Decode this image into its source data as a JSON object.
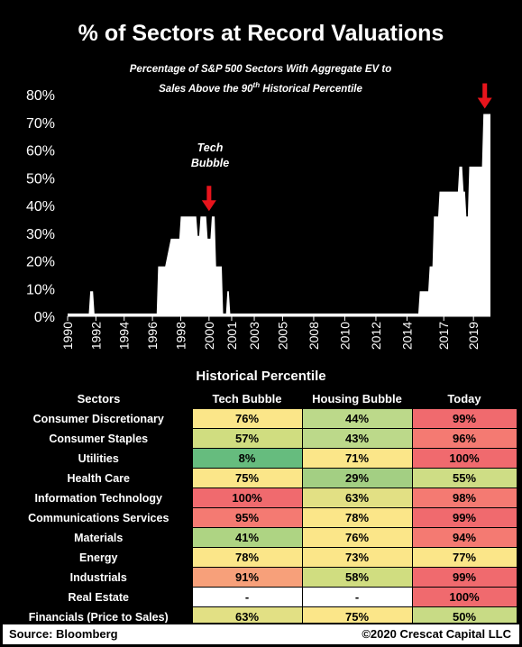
{
  "title": "% of Sectors at Record Valuations",
  "subtitle_line1": "Percentage of S&P 500 Sectors With Aggregate EV to",
  "subtitle_line2_a": "Sales Above the 90",
  "subtitle_sup": "th",
  "subtitle_line2_b": " Historical Percentile",
  "annotation": {
    "line1": "Tech",
    "line2": "Bubble"
  },
  "colors": {
    "background": "#000000",
    "area": "#ffffff",
    "arrow": "#e8141c",
    "text": "#ffffff"
  },
  "chart_data": {
    "type": "area",
    "xlim": [
      1990.0,
      2019.9
    ],
    "ylim": [
      0,
      0.8
    ],
    "y_ticks": [
      "0%",
      "10%",
      "20%",
      "30%",
      "40%",
      "50%",
      "60%",
      "70%",
      "80%"
    ],
    "x_ticks": [
      "1990",
      "1992",
      "1994",
      "1996",
      "1998",
      "2000",
      "2001",
      "2003",
      "2005",
      "2008",
      "2010",
      "2012",
      "2014",
      "2017",
      "2019"
    ],
    "x_tick_years": [
      1990.0,
      1992.0,
      1994.0,
      1996.0,
      1998.0,
      2000.0,
      2001.6,
      2003.2,
      2005.2,
      2007.4,
      2009.6,
      2011.8,
      2014.0,
      2016.6,
      2018.7
    ],
    "grid": false,
    "legend": "none",
    "x": [
      1990.0,
      1991.5,
      1991.6,
      1991.8,
      1991.9,
      1992.1,
      1996.3,
      1996.4,
      1996.6,
      1996.8,
      1996.9,
      1997.3,
      1997.4,
      1997.9,
      1998.0,
      1999.1,
      1999.2,
      1999.3,
      1999.4,
      1999.8,
      1999.9,
      2000.1,
      2000.2,
      2000.4,
      2000.5,
      2000.9,
      2001.0,
      2001.2,
      2001.3,
      2001.4,
      2001.5,
      2001.6,
      2001.7,
      2001.9,
      2002.0,
      2014.8,
      2014.9,
      2015.5,
      2015.6,
      2015.8,
      2015.9,
      2016.2,
      2016.3,
      2016.7,
      2016.8,
      2017.6,
      2017.7,
      2017.9,
      2018.0,
      2018.1,
      2018.2,
      2018.3,
      2018.4,
      2018.8,
      2018.9,
      2019.3,
      2019.4,
      2019.9
    ],
    "values": [
      0.01,
      0.01,
      0.09,
      0.09,
      0.01,
      0.01,
      0.01,
      0.18,
      0.18,
      0.18,
      0.18,
      0.28,
      0.28,
      0.28,
      0.36,
      0.36,
      0.29,
      0.29,
      0.36,
      0.36,
      0.28,
      0.28,
      0.36,
      0.36,
      0.18,
      0.18,
      0.01,
      0.01,
      0.09,
      0.09,
      0.01,
      0.01,
      0.01,
      0.01,
      0.01,
      0.01,
      0.09,
      0.09,
      0.18,
      0.18,
      0.36,
      0.36,
      0.45,
      0.45,
      0.45,
      0.45,
      0.54,
      0.54,
      0.45,
      0.45,
      0.36,
      0.36,
      0.54,
      0.54,
      0.54,
      0.54,
      0.73,
      0.73
    ],
    "markers": [
      {
        "x": 2000.0,
        "y": 0.36
      },
      {
        "x": 2019.5,
        "y": 0.73
      }
    ]
  },
  "xlabel": "Historical Percentile",
  "table": {
    "headers": [
      "Sectors",
      "Tech Bubble",
      "Housing Bubble",
      "Today"
    ],
    "rows": [
      {
        "sector": "Consumer Discretionary",
        "values": [
          "76%",
          "44%",
          "99%"
        ],
        "colors": [
          "#fbe689",
          "#bcd98a",
          "#f06a6e"
        ]
      },
      {
        "sector": "Consumer Staples",
        "values": [
          "57%",
          "43%",
          "96%"
        ],
        "colors": [
          "#d0dd80",
          "#bcd98a",
          "#f47a72"
        ]
      },
      {
        "sector": "Utilities",
        "values": [
          "8%",
          "71%",
          "100%"
        ],
        "colors": [
          "#66bc7e",
          "#fbe689",
          "#f06a6e"
        ]
      },
      {
        "sector": "Health Care",
        "values": [
          "75%",
          "29%",
          "55%"
        ],
        "colors": [
          "#fbe689",
          "#a3cf83",
          "#cedd85"
        ]
      },
      {
        "sector": "Information Technology",
        "values": [
          "100%",
          "63%",
          "98%"
        ],
        "colors": [
          "#f06a6e",
          "#e2e084",
          "#f47a72"
        ]
      },
      {
        "sector": "Communications Services",
        "values": [
          "95%",
          "78%",
          "99%"
        ],
        "colors": [
          "#f47a72",
          "#fbe689",
          "#f06a6e"
        ]
      },
      {
        "sector": "Materials",
        "values": [
          "41%",
          "76%",
          "94%"
        ],
        "colors": [
          "#aed483",
          "#fbe689",
          "#f47a72"
        ]
      },
      {
        "sector": "Energy",
        "values": [
          "78%",
          "73%",
          "77%"
        ],
        "colors": [
          "#fbe689",
          "#fbe689",
          "#fbe689"
        ]
      },
      {
        "sector": "Industrials",
        "values": [
          "91%",
          "58%",
          "99%"
        ],
        "colors": [
          "#f7a07a",
          "#d0dd80",
          "#f06a6e"
        ]
      },
      {
        "sector": "Real Estate",
        "values": [
          "-",
          "-",
          "100%"
        ],
        "colors": [
          "#ffffff",
          "#ffffff",
          "#f06a6e"
        ]
      },
      {
        "sector": "Financials (Price to Sales)",
        "values": [
          "63%",
          "75%",
          "50%"
        ],
        "colors": [
          "#e2e084",
          "#fbe689",
          "#c8db85"
        ]
      }
    ]
  },
  "footer": {
    "source": "Source: Bloomberg",
    "copyright": "©2020 Crescat Capital LLC"
  }
}
